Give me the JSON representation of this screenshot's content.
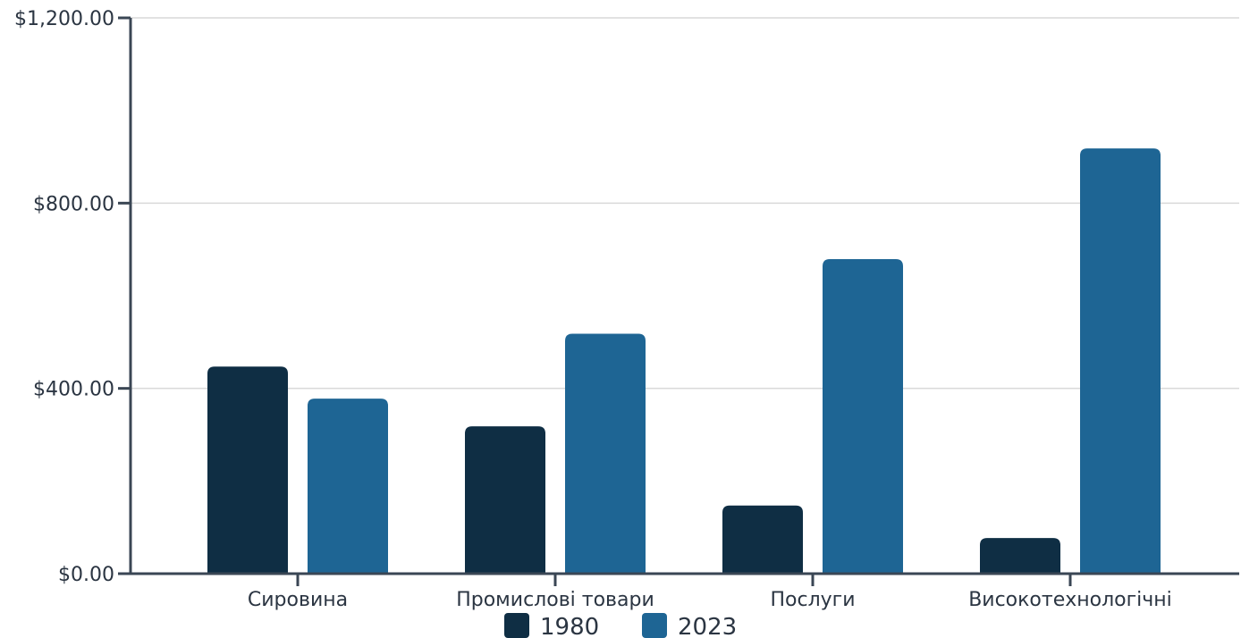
{
  "chart_data": {
    "type": "bar",
    "categories": [
      "Сировина",
      "Промислові товари",
      "Послуги",
      "Високотехнологічні"
    ],
    "series": [
      {
        "name": "1980",
        "values": [
          447,
          318,
          147,
          77
        ],
        "color": "#0f2e44"
      },
      {
        "name": "2023",
        "values": [
          378,
          518,
          679,
          918
        ],
        "color": "#1e6594"
      }
    ],
    "ylim": [
      0,
      1200
    ],
    "yticks": [
      0,
      400,
      800,
      1200
    ],
    "ytick_labels": [
      "$0.00",
      "$400.00",
      "$800.00",
      "$1,200.00"
    ],
    "grid": true,
    "legend_position": "bottom-center",
    "axis_color": "#3a4654",
    "grid_color": "#d9d9d9"
  }
}
